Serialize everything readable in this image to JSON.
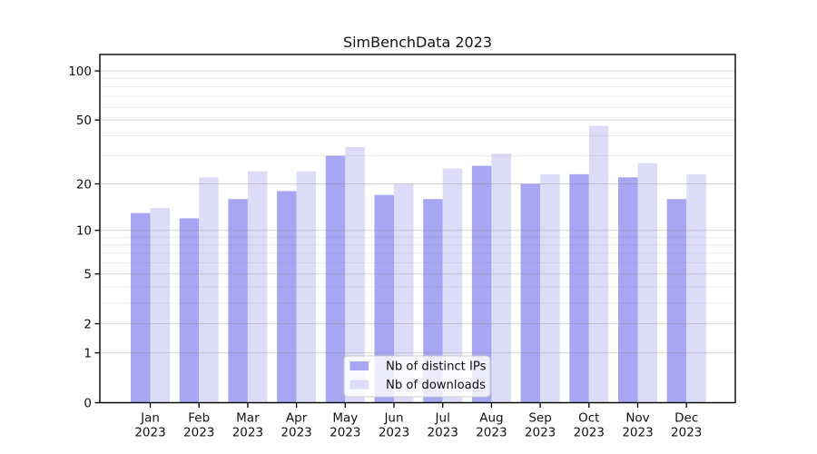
{
  "chart_data": {
    "type": "bar",
    "title": "SimBenchData 2023",
    "categories": [
      "Jan",
      "Feb",
      "Mar",
      "Apr",
      "May",
      "Jun",
      "Jul",
      "Aug",
      "Sep",
      "Oct",
      "Nov",
      "Dec"
    ],
    "year_line": "2023",
    "series": [
      {
        "name": "Nb of distinct IPs",
        "color": "#a6a6f2",
        "values": [
          13,
          12,
          16,
          18,
          30,
          17,
          16,
          26,
          20,
          23,
          22,
          16
        ]
      },
      {
        "name": "Nb of downloads",
        "color": "#dcdcf8",
        "values": [
          14,
          22,
          24,
          24,
          34,
          20,
          25,
          31,
          23,
          46,
          27,
          23
        ]
      }
    ],
    "xlabel": "",
    "ylabel": "",
    "yscale": "log1p",
    "ylim": [
      0,
      126
    ],
    "yticks_major": [
      100,
      50,
      20,
      10,
      5,
      2,
      1,
      0
    ],
    "yticks_minor": [
      90,
      80,
      70,
      60,
      40,
      30,
      9,
      8,
      7,
      6,
      4,
      3
    ],
    "grid": true,
    "legend_position": "lower center"
  },
  "colors": {
    "background": "#ffffff",
    "spine": "#000000",
    "grid": "#808080",
    "legend_border": "#cccccc",
    "legend_background": "#ffffff"
  }
}
